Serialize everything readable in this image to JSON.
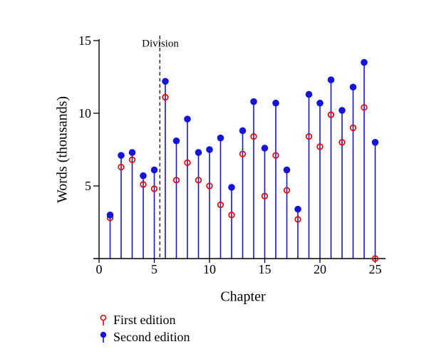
{
  "figure": {
    "background": "#ffffff"
  },
  "chart_data": {
    "type": "scatter",
    "variant": "stem-lollipop",
    "title": "",
    "xlabel": "Chapter",
    "ylabel": "Words (thousands)",
    "xlim": [
      0,
      25
    ],
    "ylim": [
      0,
      15
    ],
    "x_ticks": [
      "0",
      "5",
      "10",
      "15",
      "20",
      "25"
    ],
    "y_ticks": [
      "5",
      "10",
      "15"
    ],
    "grid": false,
    "legend_position": "below-left",
    "axis_color": "#000000",
    "stem_color": "#1414dd",
    "x": [
      1,
      2,
      3,
      4,
      5,
      6,
      7,
      8,
      9,
      10,
      11,
      12,
      13,
      14,
      15,
      16,
      17,
      18,
      19,
      20,
      21,
      22,
      23,
      24,
      25
    ],
    "series": [
      {
        "name": "First edition",
        "marker": "open-circle",
        "color": "#ee0000",
        "values": [
          2.8,
          6.3,
          6.8,
          5.1,
          4.8,
          11.1,
          5.4,
          6.6,
          5.4,
          5.0,
          3.7,
          3.0,
          7.2,
          8.4,
          4.3,
          7.1,
          4.7,
          2.7,
          8.4,
          7.7,
          9.9,
          8.0,
          9.0,
          10.4,
          0.0
        ]
      },
      {
        "name": "Second edition",
        "marker": "filled-circle",
        "color": "#1414dd",
        "values": [
          3.0,
          7.1,
          7.3,
          5.7,
          6.1,
          12.2,
          8.1,
          9.6,
          7.3,
          7.5,
          8.3,
          4.9,
          8.8,
          10.8,
          7.6,
          10.7,
          6.1,
          3.4,
          11.3,
          10.7,
          12.3,
          10.2,
          11.8,
          13.5,
          8.0
        ]
      }
    ],
    "annotation": {
      "text": "Division",
      "x": 5.5,
      "line_style": "dashed-vertical"
    }
  }
}
